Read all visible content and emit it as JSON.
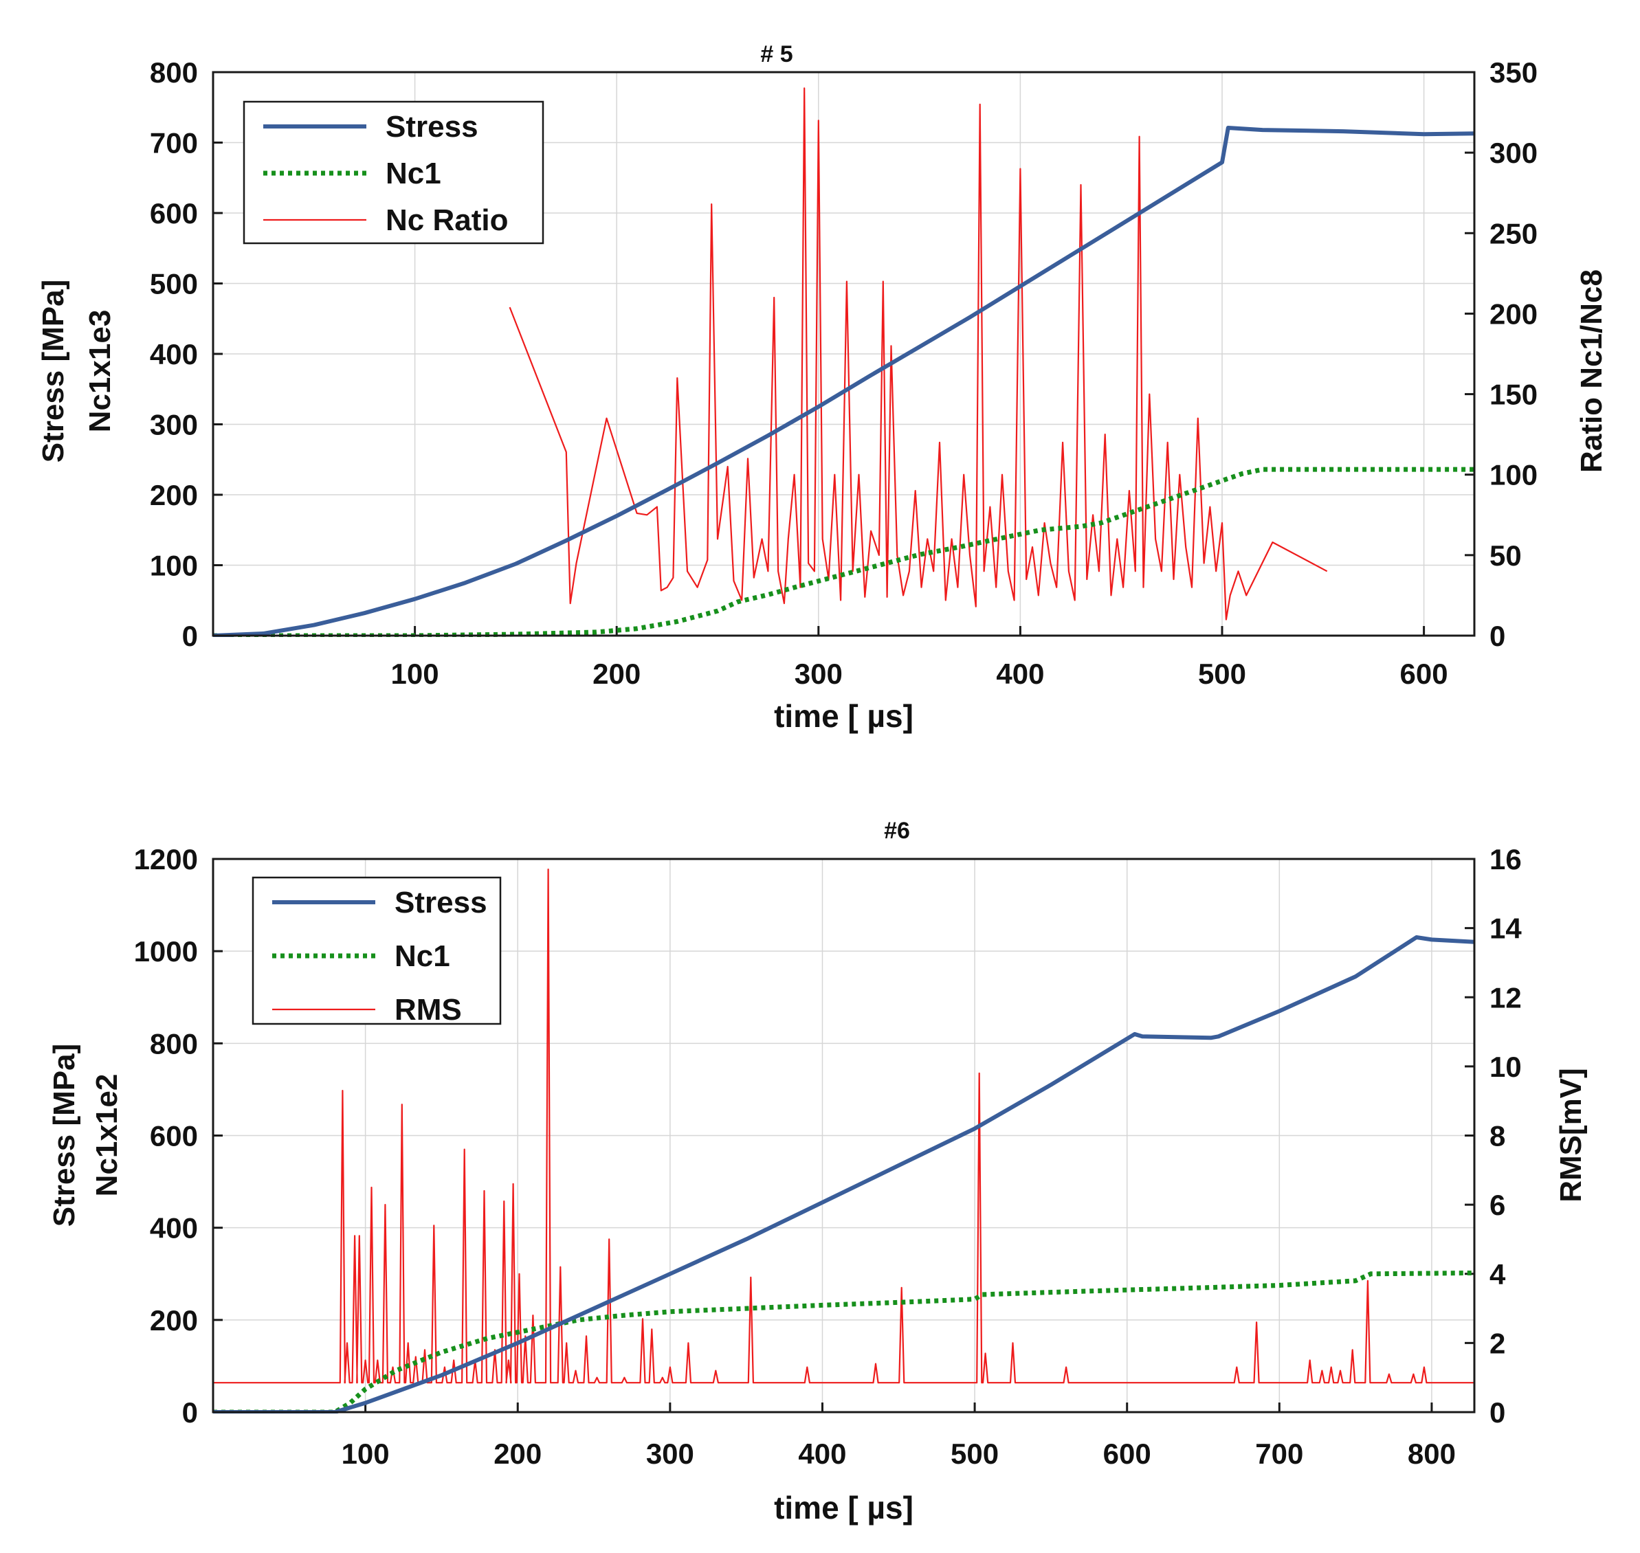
{
  "colors": {
    "stress": "#3a5e9a",
    "nc1": "#17901c",
    "red": "#ee1c1c"
  },
  "chart_data": [
    {
      "type": "line",
      "title": "# 5",
      "xlabel": "time [ µs]",
      "ylabel_lines": [
        "Stress [MPa]",
        "Nc1x1e3"
      ],
      "y2label": "Ratio Nc1/Nc8",
      "xlim": [
        0,
        625
      ],
      "ylim": [
        0,
        800
      ],
      "y2lim": [
        0,
        350
      ],
      "xticks": [
        "100",
        "200",
        "300",
        "400",
        "500",
        "600"
      ],
      "yticks": [
        "0",
        "100",
        "200",
        "300",
        "400",
        "500",
        "600",
        "700",
        "800"
      ],
      "y2ticks": [
        "0",
        "50",
        "100",
        "150",
        "200",
        "250",
        "300",
        "350"
      ],
      "legend_position": "top-left",
      "series": [
        {
          "name": "Stress",
          "style": "solid",
          "axis": "left",
          "x": [
            0,
            25,
            50,
            75,
            100,
            125,
            150,
            175,
            200,
            225,
            250,
            275,
            300,
            325,
            350,
            375,
            400,
            425,
            450,
            475,
            500,
            503,
            520,
            560,
            600,
            625
          ],
          "y": [
            0,
            3,
            15,
            32,
            52,
            75,
            102,
            135,
            170,
            207,
            245,
            284,
            325,
            368,
            410,
            452,
            496,
            540,
            584,
            628,
            672,
            721,
            718,
            716,
            712,
            713
          ]
        },
        {
          "name": "Nc1",
          "style": "dotted",
          "axis": "left",
          "x": [
            0,
            100,
            150,
            190,
            210,
            230,
            250,
            260,
            275,
            290,
            310,
            330,
            350,
            370,
            390,
            410,
            430,
            440,
            450,
            460,
            470,
            480,
            490,
            500,
            510,
            520,
            560,
            600,
            625
          ],
          "y": [
            0,
            0,
            2,
            5,
            10,
            20,
            35,
            48,
            58,
            70,
            85,
            100,
            115,
            126,
            138,
            150,
            155,
            160,
            170,
            180,
            190,
            200,
            210,
            220,
            230,
            236,
            236,
            236,
            236
          ]
        },
        {
          "name": "Nc Ratio",
          "style": "thin",
          "axis": "right",
          "x": [
            147,
            175,
            177,
            180,
            195,
            210,
            215,
            220,
            222,
            225,
            228,
            230,
            235,
            240,
            245,
            247,
            250,
            255,
            258,
            262,
            265,
            268,
            272,
            275,
            278,
            280,
            283,
            285,
            288,
            291,
            293,
            295,
            298,
            300,
            302,
            305,
            308,
            311,
            314,
            317,
            320,
            323,
            326,
            330,
            332,
            334,
            336,
            339,
            342,
            345,
            348,
            351,
            354,
            357,
            360,
            363,
            366,
            369,
            372,
            375,
            378,
            380,
            382,
            385,
            388,
            391,
            394,
            397,
            400,
            403,
            406,
            409,
            412,
            415,
            418,
            421,
            424,
            427,
            430,
            433,
            436,
            439,
            442,
            445,
            448,
            451,
            454,
            457,
            459,
            461,
            464,
            467,
            470,
            473,
            476,
            479,
            482,
            485,
            488,
            491,
            494,
            497,
            500,
            502,
            504,
            508,
            512,
            525,
            552
          ],
          "y": [
            204,
            114,
            20,
            45,
            135,
            76,
            75,
            80,
            28,
            30,
            36,
            160,
            40,
            30,
            47,
            268,
            60,
            105,
            34,
            22,
            110,
            36,
            60,
            40,
            210,
            40,
            20,
            60,
            100,
            30,
            340,
            45,
            40,
            320,
            60,
            35,
            100,
            22,
            220,
            40,
            100,
            24,
            65,
            50,
            220,
            24,
            180,
            50,
            25,
            40,
            90,
            30,
            60,
            40,
            120,
            22,
            60,
            30,
            100,
            50,
            18,
            330,
            40,
            80,
            30,
            100,
            40,
            22,
            290,
            35,
            55,
            25,
            70,
            45,
            30,
            120,
            40,
            22,
            280,
            35,
            75,
            40,
            125,
            25,
            60,
            30,
            90,
            40,
            310,
            30,
            150,
            60,
            40,
            120,
            35,
            100,
            55,
            30,
            135,
            45,
            80,
            40,
            70,
            10,
            25,
            40,
            25,
            58,
            40
          ]
        }
      ]
    },
    {
      "type": "line",
      "title": "#6",
      "xlabel": "time [ µs]",
      "ylabel_lines": [
        "Stress [MPa]",
        "Nc1x1e2"
      ],
      "y2label": "RMS[mV]",
      "xlim": [
        0,
        828
      ],
      "ylim": [
        0,
        1200
      ],
      "y2lim": [
        0,
        16
      ],
      "xticks": [
        "100",
        "200",
        "300",
        "400",
        "500",
        "600",
        "700",
        "800"
      ],
      "yticks": [
        "0",
        "200",
        "400",
        "600",
        "800",
        "1000",
        "1200"
      ],
      "y2ticks": [
        "0",
        "2",
        "4",
        "6",
        "8",
        "10",
        "12",
        "14",
        "16"
      ],
      "legend_position": "top-left",
      "series": [
        {
          "name": "Stress",
          "style": "solid",
          "axis": "left",
          "x": [
            0,
            80,
            100,
            150,
            200,
            250,
            300,
            350,
            400,
            450,
            500,
            550,
            605,
            610,
            655,
            660,
            700,
            750,
            790,
            800,
            828
          ],
          "y": [
            0,
            0,
            20,
            80,
            150,
            225,
            300,
            375,
            455,
            535,
            615,
            710,
            820,
            815,
            812,
            815,
            870,
            945,
            1030,
            1025,
            1020
          ],
          "x_note": "monotone"
        },
        {
          "name": "Nc1",
          "style": "dotted",
          "axis": "left",
          "x": [
            0,
            80,
            90,
            100,
            120,
            150,
            180,
            210,
            240,
            270,
            300,
            350,
            400,
            450,
            500,
            505,
            550,
            600,
            650,
            700,
            750,
            760,
            828
          ],
          "y": [
            0,
            0,
            20,
            50,
            90,
            130,
            160,
            180,
            200,
            210,
            218,
            225,
            232,
            238,
            245,
            255,
            260,
            265,
            270,
            275,
            285,
            300,
            302
          ]
        },
        {
          "name": "RMS",
          "style": "thin",
          "axis": "right",
          "baseline": 0.85,
          "spikes": [
            [
              85,
              9.3
            ],
            [
              88,
              2.0
            ],
            [
              93,
              5.1
            ],
            [
              96,
              5.1
            ],
            [
              100,
              1.5
            ],
            [
              104,
              6.5
            ],
            [
              108,
              1.5
            ],
            [
              113,
              6.0
            ],
            [
              118,
              1.3
            ],
            [
              124,
              8.9
            ],
            [
              128,
              2.0
            ],
            [
              133,
              1.6
            ],
            [
              139,
              1.8
            ],
            [
              145,
              5.4
            ],
            [
              152,
              1.3
            ],
            [
              158,
              1.5
            ],
            [
              165,
              7.6
            ],
            [
              172,
              1.5
            ],
            [
              178,
              6.4
            ],
            [
              185,
              1.8
            ],
            [
              191,
              6.1
            ],
            [
              194,
              1.5
            ],
            [
              197,
              6.6
            ],
            [
              201,
              4.0
            ],
            [
              205,
              2.2
            ],
            [
              210,
              2.8
            ],
            [
              220,
              15.7
            ],
            [
              228,
              4.2
            ],
            [
              232,
              2.0
            ],
            [
              238,
              1.2
            ],
            [
              245,
              2.2
            ],
            [
              252,
              1.0
            ],
            [
              260,
              5.0
            ],
            [
              270,
              1.0
            ],
            [
              282,
              2.7
            ],
            [
              288,
              2.4
            ],
            [
              295,
              1.0
            ],
            [
              300,
              1.3
            ],
            [
              312,
              2.0
            ],
            [
              330,
              1.2
            ],
            [
              353,
              3.9
            ],
            [
              390,
              1.3
            ],
            [
              435,
              1.4
            ],
            [
              452,
              3.6
            ],
            [
              503,
              9.8
            ],
            [
              507,
              1.7
            ],
            [
              525,
              2.0
            ],
            [
              560,
              1.3
            ],
            [
              672,
              1.3
            ],
            [
              685,
              2.6
            ],
            [
              720,
              1.5
            ],
            [
              728,
              1.2
            ],
            [
              734,
              1.3
            ],
            [
              740,
              1.2
            ],
            [
              748,
              1.8
            ],
            [
              758,
              3.8
            ],
            [
              772,
              1.1
            ],
            [
              788,
              1.1
            ],
            [
              795,
              1.3
            ]
          ]
        }
      ]
    }
  ]
}
